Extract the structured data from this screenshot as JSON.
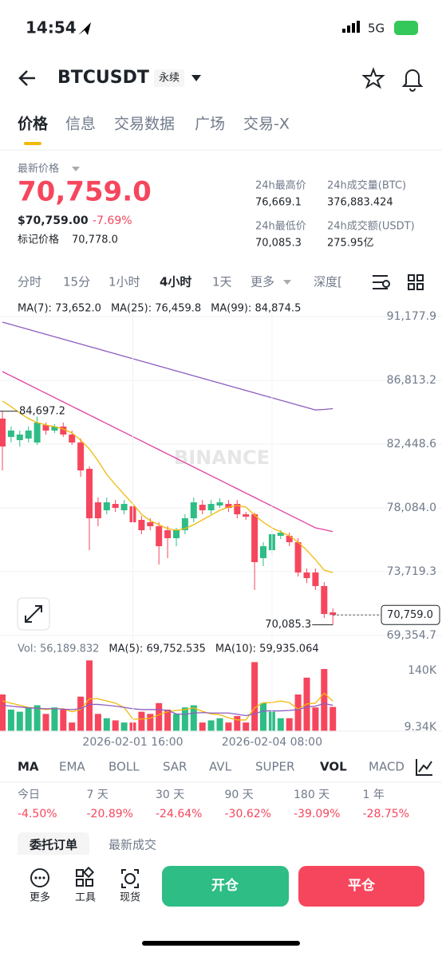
{
  "status": {
    "time": "14:54",
    "network": "5G"
  },
  "header": {
    "symbol": "BTCUSDT",
    "badge": "永续"
  },
  "tabs": [
    "价格",
    "信息",
    "交易数据",
    "广场",
    "交易-X"
  ],
  "price": {
    "label": "最新价格",
    "last": "70,759.0",
    "usd": "$70,759.00",
    "change": "-7.69%",
    "mark_label": "标记价格",
    "mark": "70,778.0"
  },
  "stats": [
    {
      "label": "24h最高价",
      "value": "76,669.1"
    },
    {
      "label": "24h成交量(BTC)",
      "value": "376,883.424"
    },
    {
      "label": "24h最低价",
      "value": "70,085.3"
    },
    {
      "label": "24h成交额(USDT)",
      "value": "275.95亿"
    }
  ],
  "intervals": [
    "分时",
    "15分",
    "1小时",
    "4小时",
    "1天",
    "更多",
    "深度["
  ],
  "watermark": "BINANCE",
  "chart_data": [
    {
      "type": "candlestick",
      "up_color": "#2ebd85",
      "down_color": "#f6465d",
      "grid": true,
      "categories": [
        null,
        null,
        null,
        null,
        null,
        null,
        null,
        null,
        null,
        null,
        null,
        null,
        null,
        null,
        null,
        "2026-02-01 16:00",
        null,
        null,
        null,
        null,
        null,
        null,
        null,
        null,
        null,
        null,
        null,
        null,
        null,
        null,
        null,
        "2026-02-04 08:00",
        null,
        null,
        null,
        null,
        null,
        null,
        null
      ],
      "open": [
        84194,
        82940,
        82721,
        82830,
        82557,
        83757,
        83376,
        83648,
        83103,
        82557,
        80757,
        78465,
        77920,
        78356,
        77920,
        78193,
        77265,
        77101,
        76829,
        76556,
        76010,
        76556,
        77374,
        78302,
        77920,
        78247,
        78356,
        78356,
        77647,
        77647,
        74646,
        75191,
        76174,
        76174,
        75737,
        73664,
        73664,
        72736,
        70935
      ],
      "high": [
        84697.2,
        83648,
        83376,
        83648,
        84330,
        83921,
        83812,
        83921,
        83376,
        82830,
        80920,
        78793,
        78793,
        78629,
        78629,
        78465,
        77538,
        77374,
        77101,
        76829,
        76720,
        77647,
        78793,
        78629,
        78629,
        78738,
        78629,
        78629,
        77811,
        77756,
        75737,
        76556,
        76556,
        76392,
        76010,
        73937,
        73937,
        73009,
        71208
      ],
      "low": [
        80648,
        82557,
        82285,
        82557,
        82394,
        83103,
        83212,
        82940,
        82394,
        80211,
        75191,
        76829,
        77647,
        77811,
        77647,
        76829,
        76283,
        76556,
        74209,
        74646,
        75464,
        76283,
        77101,
        77647,
        77647,
        78084,
        77811,
        77374,
        77265,
        72463,
        74100,
        74919,
        75956,
        75464,
        73391,
        72936,
        72463,
        70553,
        70085.3
      ],
      "close": [
        82285,
        83376,
        83103,
        83376,
        83921,
        83376,
        83648,
        83103,
        82557,
        80648,
        77374,
        77374,
        78465,
        78084,
        78356,
        77101,
        76556,
        76829,
        75464,
        76010,
        76556,
        77374,
        78465,
        77920,
        78356,
        78465,
        78084,
        77647,
        77483,
        74373,
        75464,
        76283,
        76392,
        75737,
        73664,
        73282,
        72736,
        70826,
        70759.0
      ],
      "series": [
        {
          "name": "MA(7): 73,652.0",
          "color": "#f0b90b",
          "values": [
            85395,
            85013,
            84576,
            84194,
            83921,
            83757,
            83648,
            83485,
            83212,
            82721,
            82121,
            81302,
            80375,
            79666,
            79011,
            78356,
            77647,
            77210,
            76938,
            76665,
            76556,
            76665,
            76938,
            77265,
            77592,
            77920,
            78139,
            78247,
            78139,
            77592,
            77101,
            76720,
            76447,
            76174,
            75737,
            75191,
            74537,
            73828,
            73652.0
          ]
        },
        {
          "name": "MA(25): 76,459.8",
          "color": "#e040a0",
          "values": [
            87413,
            87116,
            86819,
            86522,
            86225,
            85928,
            85631,
            85334,
            85037,
            84740,
            84443,
            84146,
            83849,
            83552,
            83255,
            82958,
            82661,
            82364,
            82067,
            81770,
            81473,
            81176,
            80879,
            80582,
            80285,
            79988,
            79691,
            79394,
            79097,
            78800,
            78503,
            78206,
            77909,
            77612,
            77315,
            77018,
            76721,
            76600,
            76459.8
          ]
        },
        {
          "name": "MA(99): 84,874.5",
          "color": "#8e5cc0",
          "values": [
            90796,
            90629,
            90462,
            90295,
            90128,
            89961,
            89794,
            89627,
            89460,
            89293,
            89126,
            88959,
            88792,
            88625,
            88458,
            88291,
            88124,
            87957,
            87790,
            87623,
            87456,
            87289,
            87122,
            86955,
            86788,
            86621,
            86454,
            86287,
            86120,
            85953,
            85786,
            85619,
            85452,
            85285,
            85118,
            84951,
            84784,
            84820,
            84874.5
          ]
        }
      ],
      "ylim": [
        69191,
        92378
      ],
      "yticks": [
        {
          "value": 91177.9,
          "label": "91,177.9"
        },
        {
          "value": 86813.2,
          "label": "86,813.2"
        },
        {
          "value": 82448.6,
          "label": "82,448.6"
        },
        {
          "value": 78084.0,
          "label": "78,084.0"
        },
        {
          "value": 73719.3,
          "label": "73,719.3"
        },
        {
          "value": 69354.7,
          "label": "69,354.7"
        }
      ],
      "high_label": "84,697.2",
      "low_label": "70,085.3",
      "last_label": "70,759.0"
    },
    {
      "type": "bar",
      "name": "Vol: 56,189.832",
      "values": [
        85000,
        50000,
        45000,
        55000,
        60000,
        40000,
        55000,
        50000,
        20000,
        80000,
        164000,
        40000,
        30000,
        25000,
        20000,
        20000,
        45000,
        40000,
        65000,
        50000,
        40000,
        55000,
        60000,
        20000,
        25000,
        30000,
        20000,
        35000,
        20000,
        160000,
        65000,
        45000,
        30000,
        30000,
        85000,
        124000,
        55000,
        144000,
        56189.832
      ],
      "series": [
        {
          "name": "MA(5): 69,752.535",
          "color": "#f0b90b",
          "values": [
            70000,
            65000,
            60000,
            55000,
            53000,
            50000,
            52000,
            52000,
            45000,
            50000,
            75000,
            75000,
            70000,
            65000,
            55000,
            28000,
            28000,
            30000,
            38000,
            45000,
            48000,
            50000,
            54000,
            46000,
            40000,
            38000,
            31000,
            26000,
            26000,
            54000,
            66000,
            66000,
            70000,
            66000,
            51000,
            63000,
            65000,
            88000,
            69752.535
          ]
        },
        {
          "name": "MA(10): 59,935.064",
          "color": "#8e5cc0",
          "values": [
            60000,
            58000,
            56000,
            54000,
            53000,
            52000,
            52000,
            51000,
            50000,
            52000,
            62000,
            62000,
            60000,
            58000,
            55000,
            52000,
            50000,
            50000,
            50000,
            48000,
            40000,
            39000,
            42000,
            43000,
            42000,
            42000,
            42000,
            39000,
            36000,
            40000,
            47000,
            47000,
            47000,
            48000,
            50000,
            56000,
            58000,
            64000,
            59935.064
          ]
        }
      ],
      "ylim": [
        0,
        170000
      ],
      "yticks": [
        {
          "value": 140000,
          "label": "140K"
        },
        {
          "value": 9340,
          "label": "9.34K"
        }
      ]
    }
  ],
  "indicators": [
    "MA",
    "EMA",
    "BOLL",
    "SAR",
    "AVL",
    "SUPER",
    "VOL",
    "MACD"
  ],
  "performance": [
    {
      "label": "今日",
      "value": "-4.50%"
    },
    {
      "label": "7 天",
      "value": "-20.89%"
    },
    {
      "label": "30 天",
      "value": "-24.64%"
    },
    {
      "label": "90 天",
      "value": "-30.62%"
    },
    {
      "label": "180 天",
      "value": "-39.09%"
    },
    {
      "label": "1 年",
      "value": "-28.75%"
    }
  ],
  "order_tabs": [
    "委托订单",
    "最新成交"
  ],
  "bottom": {
    "links": [
      "更多",
      "工具",
      "现货"
    ],
    "open": "开仓",
    "close": "平仓"
  }
}
